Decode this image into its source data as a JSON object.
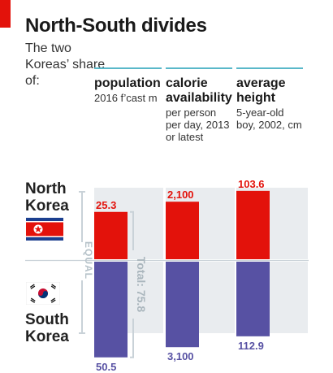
{
  "title": "North-South divides",
  "subtitle": "The two Koreas’ share of:",
  "columns": [
    {
      "label": "population",
      "note": "2016 f’cast m"
    },
    {
      "label": "calorie availability",
      "note": "per person per day, 2013 or latest"
    },
    {
      "label": "average height",
      "note": "5-year-old boy, 2002, cm"
    }
  ],
  "countries": {
    "north": "North Korea",
    "south": "South Korea"
  },
  "equal_label": "EQUAL",
  "total_label": "Total: 75.8",
  "colors": {
    "north": "#e3120b",
    "south": "#5751a3",
    "panel": "#e9ecef",
    "rule": "#59b8c9",
    "equal_line": "#c9d2d8"
  },
  "chart_data": {
    "type": "bar",
    "categories": [
      "population",
      "calorie availability",
      "average height"
    ],
    "series": [
      {
        "name": "North Korea",
        "values": [
          25.3,
          2100,
          103.6
        ],
        "labels": [
          "25.3",
          "2,100",
          "103.6"
        ]
      },
      {
        "name": "South Korea",
        "values": [
          50.5,
          3100,
          112.9
        ],
        "labels": [
          "50.5",
          "3,100",
          "112.9"
        ]
      }
    ]
  }
}
